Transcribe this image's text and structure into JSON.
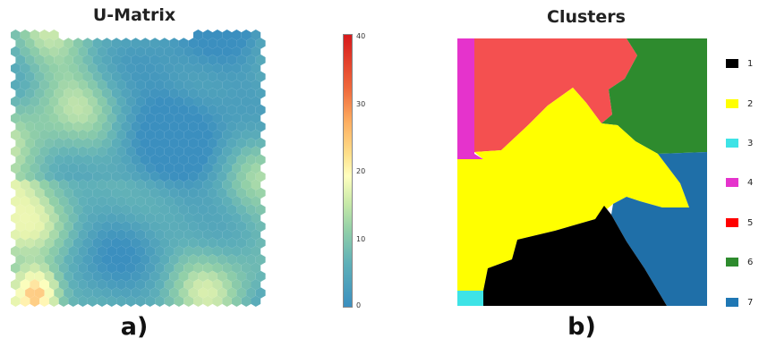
{
  "umatrix": {
    "title": "U-Matrix",
    "label": "a)",
    "colorbar_ticks": [
      "40",
      "30",
      "20",
      "10",
      "0"
    ],
    "colors": {
      "low": "#3b8fbf",
      "mid": "#ffffbf",
      "high": "#d7191c"
    }
  },
  "clusters": {
    "title": "Clusters",
    "label": "b)",
    "legend": [
      {
        "label": "1",
        "color": "#000000"
      },
      {
        "label": "2",
        "color": "#ffff00"
      },
      {
        "label": "3",
        "color": "#3ee3e6"
      },
      {
        "label": "4",
        "color": "#e533cc"
      },
      {
        "label": "5",
        "color": "#ff0000"
      },
      {
        "label": "6",
        "color": "#2e8b2e"
      },
      {
        "label": "7",
        "color": "#1f77b4"
      }
    ]
  }
}
